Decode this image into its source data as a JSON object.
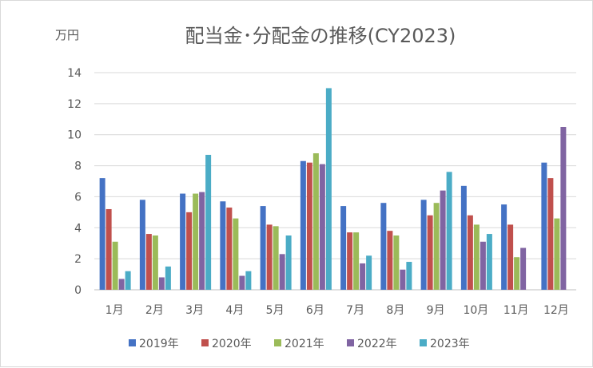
{
  "chart_data": {
    "type": "bar",
    "title": "配当金･分配金の推移(CY2023)",
    "ylabel": "万円",
    "xlabel": "",
    "ylim": [
      0,
      14
    ],
    "yticks": [
      0,
      2,
      4,
      6,
      8,
      10,
      12,
      14
    ],
    "grid": true,
    "legend_position": "bottom",
    "categories": [
      "1月",
      "2月",
      "3月",
      "4月",
      "5月",
      "6月",
      "7月",
      "8月",
      "9月",
      "10月",
      "11月",
      "12月"
    ],
    "series": [
      {
        "name": "2019年",
        "color": "#4472C4",
        "values": [
          7.2,
          5.8,
          6.2,
          5.7,
          5.4,
          8.3,
          5.4,
          5.6,
          5.8,
          6.7,
          5.5,
          8.2
        ]
      },
      {
        "name": "2020年",
        "color": "#C0504D",
        "values": [
          5.2,
          3.6,
          5.0,
          5.3,
          4.2,
          8.2,
          3.7,
          3.8,
          4.8,
          4.8,
          4.2,
          7.2
        ]
      },
      {
        "name": "2021年",
        "color": "#9BBB59",
        "values": [
          3.1,
          3.5,
          6.2,
          4.6,
          4.1,
          8.8,
          3.7,
          3.5,
          5.6,
          4.2,
          2.1,
          4.6
        ]
      },
      {
        "name": "2022年",
        "color": "#8064A2",
        "values": [
          0.7,
          0.8,
          6.3,
          0.9,
          2.3,
          8.1,
          1.7,
          1.3,
          6.4,
          3.1,
          2.7,
          10.5
        ]
      },
      {
        "name": "2023年",
        "color": "#4BACC6",
        "values": [
          1.2,
          1.5,
          8.7,
          1.2,
          3.5,
          13.0,
          2.2,
          1.8,
          7.6,
          3.6,
          null,
          null
        ]
      }
    ]
  }
}
